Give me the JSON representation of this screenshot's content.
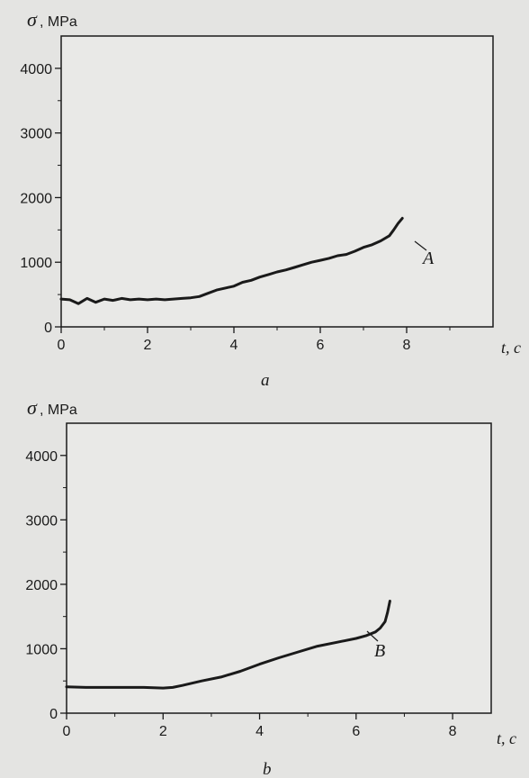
{
  "charts": [
    {
      "panel_label": "a",
      "ylabel_symbol": "σ",
      "ylabel_unit": ", MPa",
      "xlabel": "t, c",
      "curve_label": "A",
      "colors": {
        "line": "#1a1a1a",
        "frame": "#1a1a1a",
        "background": "#e9e9e7"
      }
    },
    {
      "panel_label": "b",
      "ylabel_symbol": "σ",
      "ylabel_unit": ", MPa",
      "xlabel": "t, c",
      "curve_label": "B",
      "colors": {
        "line": "#1a1a1a",
        "frame": "#1a1a1a",
        "background": "#e9e9e7"
      }
    }
  ],
  "chart_data": [
    {
      "type": "line",
      "title": "",
      "xlabel": "t, c",
      "ylabel": "σ, MPa",
      "xlim": [
        0,
        10
      ],
      "ylim": [
        0,
        4500
      ],
      "xticks": [
        0,
        2,
        4,
        6,
        8
      ],
      "yticks": [
        0,
        1000,
        2000,
        3000,
        4000
      ],
      "grid": false,
      "series": [
        {
          "name": "A",
          "x": [
            0,
            0.2,
            0.4,
            0.6,
            0.8,
            1.0,
            1.2,
            1.4,
            1.6,
            1.8,
            2.0,
            2.2,
            2.4,
            2.6,
            2.8,
            3.0,
            3.2,
            3.4,
            3.6,
            3.8,
            4.0,
            4.2,
            4.4,
            4.6,
            4.8,
            5.0,
            5.2,
            5.4,
            5.6,
            5.8,
            6.0,
            6.2,
            6.4,
            6.6,
            6.8,
            7.0,
            7.2,
            7.4,
            7.6,
            7.7,
            7.8,
            7.9
          ],
          "y": [
            430,
            420,
            360,
            440,
            380,
            430,
            410,
            440,
            420,
            430,
            420,
            430,
            420,
            430,
            440,
            450,
            470,
            520,
            570,
            600,
            630,
            690,
            720,
            770,
            810,
            850,
            880,
            920,
            960,
            1000,
            1030,
            1060,
            1100,
            1120,
            1170,
            1230,
            1270,
            1330,
            1410,
            1500,
            1600,
            1680
          ]
        }
      ]
    },
    {
      "type": "line",
      "title": "",
      "xlabel": "t, c",
      "ylabel": "σ, MPa",
      "xlim": [
        0,
        8.8
      ],
      "ylim": [
        0,
        4500
      ],
      "xticks": [
        0,
        2,
        4,
        6,
        8
      ],
      "yticks": [
        0,
        1000,
        2000,
        3000,
        4000
      ],
      "grid": false,
      "series": [
        {
          "name": "B",
          "x": [
            0,
            0.4,
            0.8,
            1.2,
            1.6,
            2.0,
            2.2,
            2.4,
            2.8,
            3.2,
            3.6,
            4.0,
            4.4,
            4.8,
            5.2,
            5.6,
            6.0,
            6.2,
            6.4,
            6.5,
            6.6,
            6.65,
            6.7
          ],
          "y": [
            410,
            400,
            400,
            400,
            400,
            390,
            400,
            430,
            500,
            560,
            650,
            760,
            860,
            950,
            1040,
            1100,
            1160,
            1200,
            1260,
            1320,
            1420,
            1560,
            1740
          ]
        }
      ]
    }
  ]
}
